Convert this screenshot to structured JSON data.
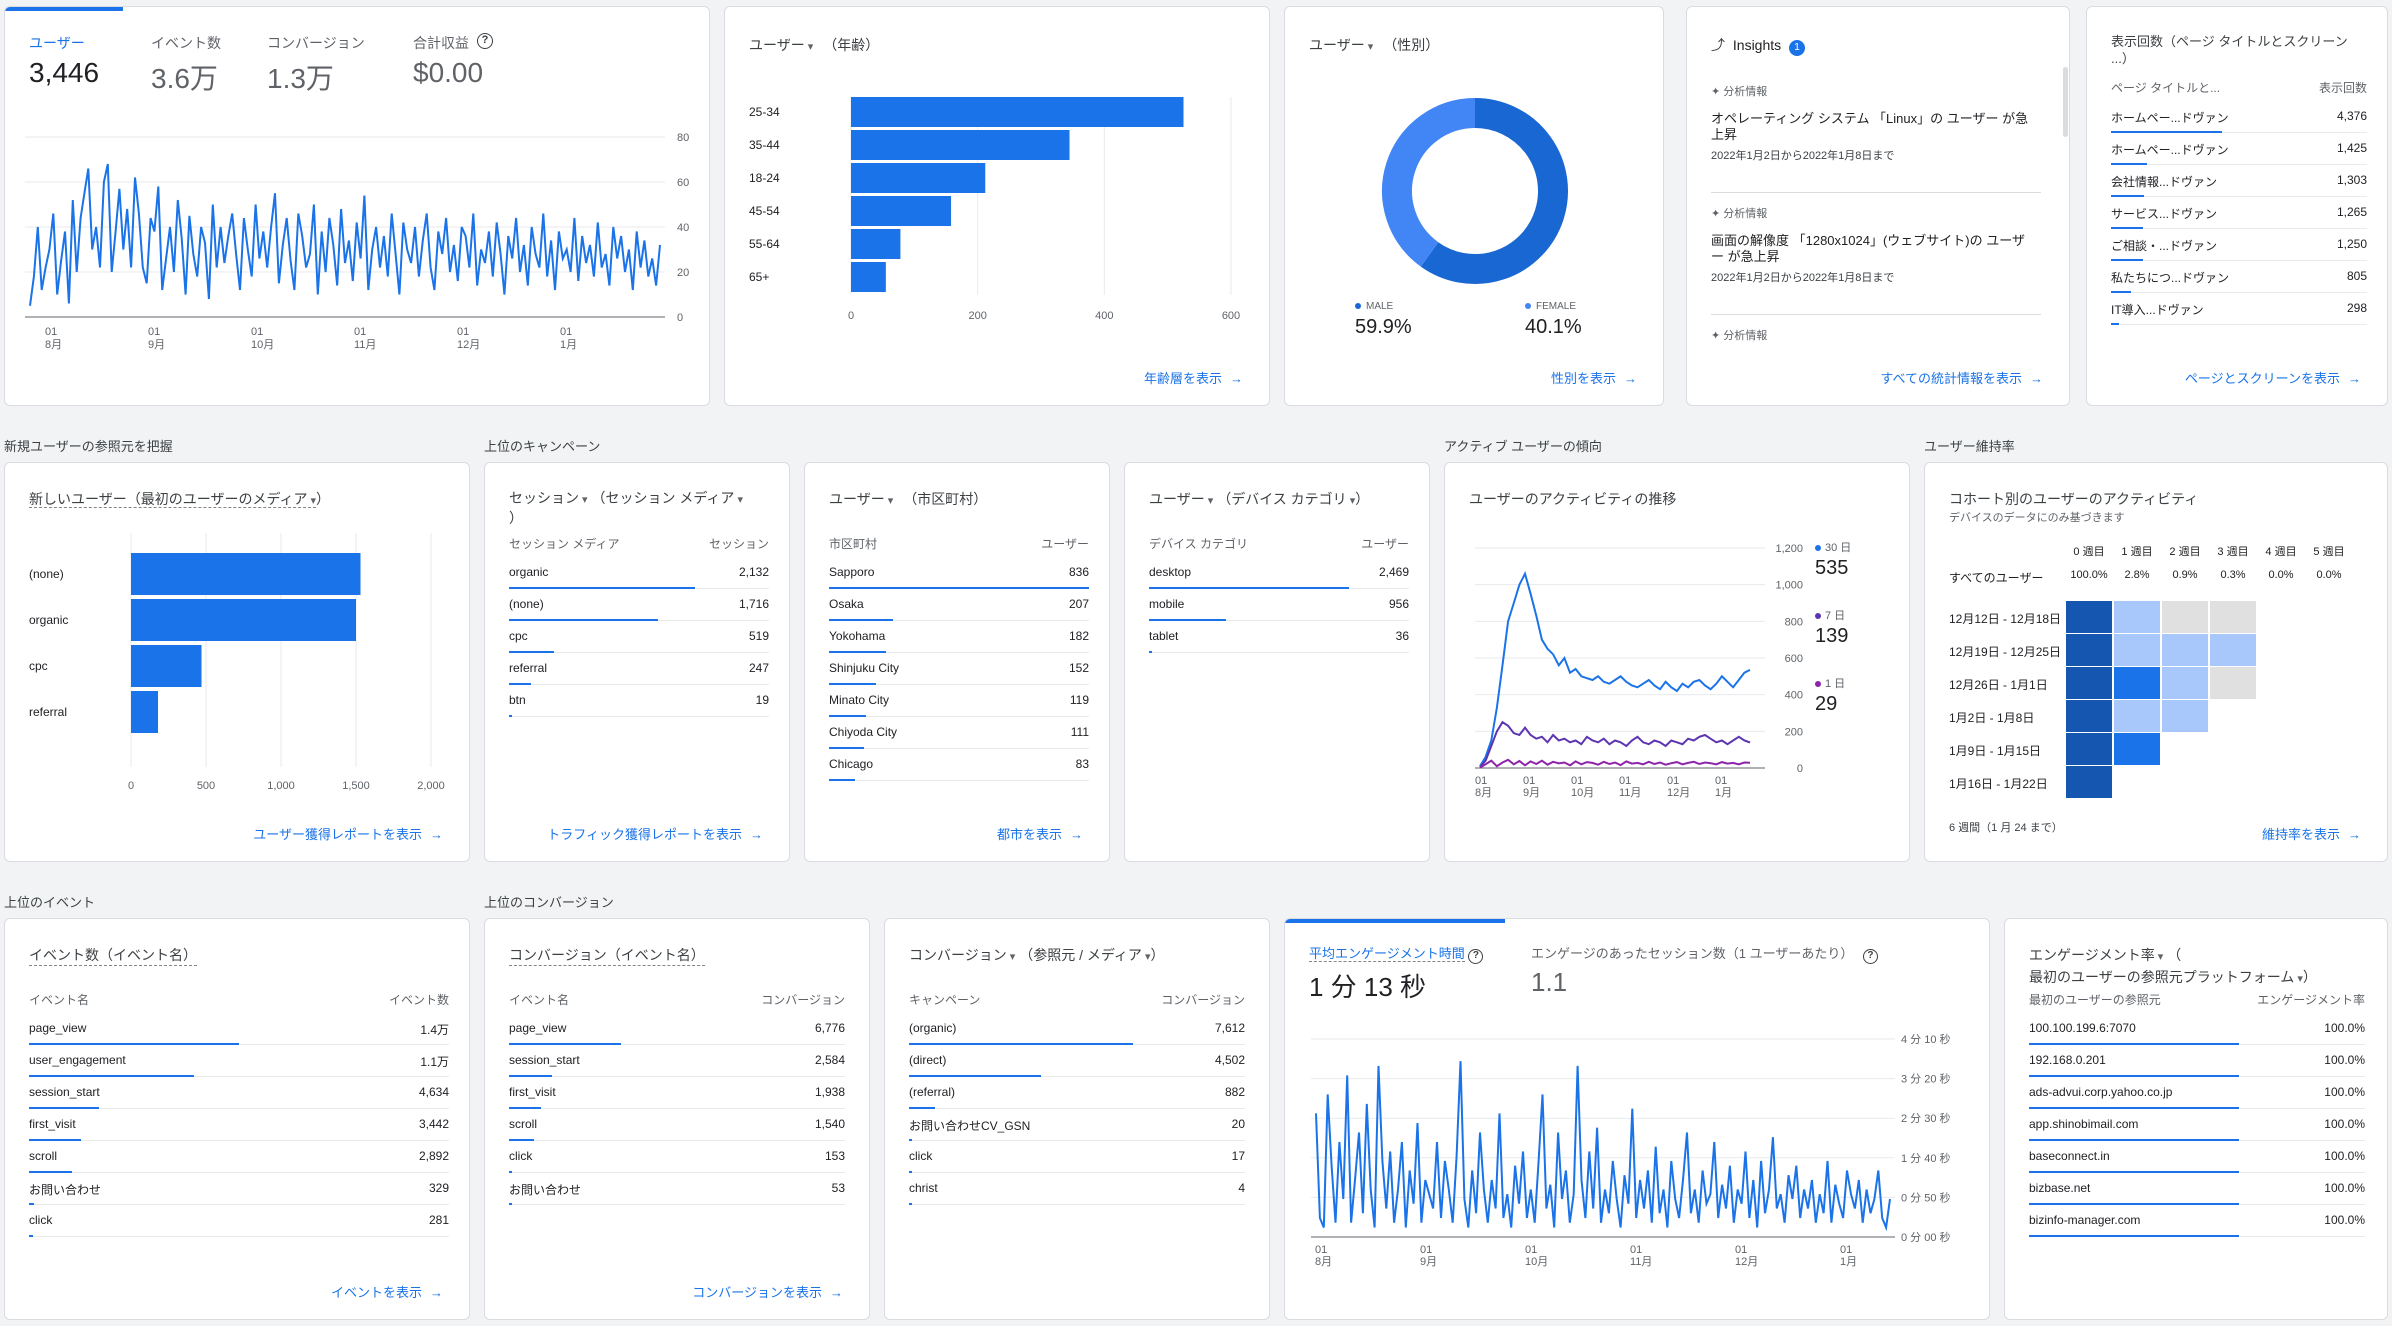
{
  "overview": {
    "metrics": [
      {
        "label": "ユーザー",
        "value": "3,446"
      },
      {
        "label": "イベント数",
        "value": "3.6万"
      },
      {
        "label": "コンバージョン",
        "value": "1.3万"
      },
      {
        "label": "合計収益",
        "value": "$0.00"
      }
    ],
    "y_ticks": [
      "80",
      "60",
      "40",
      "20",
      "0"
    ],
    "x_ticks": [
      [
        "01",
        "8月"
      ],
      [
        "01",
        "9月"
      ],
      [
        "01",
        "10月"
      ],
      [
        "01",
        "11月"
      ],
      [
        "01",
        "12月"
      ],
      [
        "01",
        "1月"
      ]
    ]
  },
  "age": {
    "title": "ユーザー",
    "dim": "（年齢）",
    "link": "年齢層を表示",
    "x_ticks": [
      "0",
      "200",
      "400",
      "600"
    ]
  },
  "gender": {
    "title": "ユーザー",
    "dim": "（性別）",
    "male_label": "MALE",
    "male_value": "59.9%",
    "female_label": "FEMALE",
    "female_value": "40.1%",
    "link": "性別を表示",
    "male_color": "#1967d2",
    "female_color": "#4285f4"
  },
  "insights": {
    "title": "Insights",
    "badge": "1",
    "items": [
      {
        "tag": "分析情報",
        "text": "オペレーティング システム 「Linux」の ユーザー が急上昇",
        "date": "2022年1月2日から2022年1月8日まで"
      },
      {
        "tag": "分析情報",
        "text": "画面の解像度 「1280x1024」(ウェブサイト)の ユーザー が急上昇",
        "date": "2022年1月2日から2022年1月8日まで"
      },
      {
        "tag": "分析情報"
      }
    ],
    "link": "すべての統計情報を表示"
  },
  "pages": {
    "title": "表示回数（ページ タイトルとスクリーン ...）",
    "col1": "ページ タイトルと...",
    "col2": "表示回数",
    "rows": [
      {
        "k": "ホームペー...ドヴァン",
        "v": "4,376"
      },
      {
        "k": "ホームペー...ドヴァン",
        "v": "1,425"
      },
      {
        "k": "会社情報...ドヴァン",
        "v": "1,303"
      },
      {
        "k": "サービス...ドヴァン",
        "v": "1,265"
      },
      {
        "k": "ご相談・...ドヴァン",
        "v": "1,250"
      },
      {
        "k": "私たちにつ...ドヴァン",
        "v": "805"
      },
      {
        "k": "IT導入...ドヴァン",
        "v": "298"
      }
    ],
    "link": "ページとスクリーンを表示"
  },
  "sections": {
    "new_users": "新規ユーザーの参照元を把握",
    "campaigns": "上位のキャンペーン",
    "active": "アクティブ ユーザーの傾向",
    "retention": "ユーザー維持率",
    "events": "上位のイベント",
    "conversions": "上位のコンバージョン"
  },
  "new_users": {
    "title": "新しいユーザー（最初のユーザーのメディア",
    "close": "）",
    "link": "ユーザー獲得レポートを表示",
    "x_ticks": [
      "0",
      "500",
      "1,000",
      "1,500",
      "2,000"
    ]
  },
  "sessions": {
    "title": "セッション",
    "dim": "（セッション メディア",
    "close": "）",
    "col1": "セッション メディア",
    "col2": "セッション",
    "rows": [
      {
        "k": "organic",
        "v": "2,132"
      },
      {
        "k": "(none)",
        "v": "1,716"
      },
      {
        "k": "cpc",
        "v": "519"
      },
      {
        "k": "referral",
        "v": "247"
      },
      {
        "k": "btn",
        "v": "19"
      }
    ],
    "link": "トラフィック獲得レポートを表示"
  },
  "cities": {
    "title": "ユーザー",
    "dim": "（市区町村）",
    "col1": "市区町村",
    "col2": "ユーザー",
    "rows": [
      {
        "k": "Sapporo",
        "v": "836"
      },
      {
        "k": "Osaka",
        "v": "207"
      },
      {
        "k": "Yokohama",
        "v": "182"
      },
      {
        "k": "Shinjuku City",
        "v": "152"
      },
      {
        "k": "Minato City",
        "v": "119"
      },
      {
        "k": "Chiyoda City",
        "v": "111"
      },
      {
        "k": "Chicago",
        "v": "83"
      }
    ],
    "link": "都市を表示"
  },
  "devices": {
    "title": "ユーザー",
    "dim": "（デバイス カテゴリ",
    "close": "）",
    "col1": "デバイス カテゴリ",
    "col2": "ユーザー",
    "rows": [
      {
        "k": "desktop",
        "v": "2,469"
      },
      {
        "k": "mobile",
        "v": "956"
      },
      {
        "k": "tablet",
        "v": "36"
      }
    ]
  },
  "activity": {
    "title": "ユーザーのアクティビティの推移",
    "y_ticks": [
      "1,200",
      "1,000",
      "800",
      "600",
      "400",
      "200",
      "0"
    ],
    "x_ticks": [
      [
        "01",
        "8月"
      ],
      [
        "01",
        "9月"
      ],
      [
        "01",
        "10月"
      ],
      [
        "01",
        "11月"
      ],
      [
        "01",
        "12月"
      ],
      [
        "01",
        "1月"
      ]
    ],
    "legend": [
      {
        "label": "30 日",
        "value": "535",
        "color": "#1a73e8"
      },
      {
        "label": "7 日",
        "value": "139",
        "color": "#5e35b1"
      },
      {
        "label": "1 日",
        "value": "29",
        "color": "#8e24aa"
      }
    ]
  },
  "cohort": {
    "title": "コホート別のユーザーのアクティビティ",
    "subtitle": "デバイスのデータにのみ基づきます",
    "weeks": [
      "0 週目",
      "1 週目",
      "2 週目",
      "3 週目",
      "4 週目",
      "5 週目"
    ],
    "all_label": "すべてのユーザー",
    "all_values": [
      "100.0%",
      "2.8%",
      "0.9%",
      "0.3%",
      "0.0%",
      "0.0%"
    ],
    "rows": [
      "12月12日 - 12月18日",
      "12月19日 - 12月25日",
      "12月26日 - 1月1日",
      "1月2日 - 1月8日",
      "1月9日 - 1月15日",
      "1月16日 - 1月22日"
    ],
    "footer": "6 週間（1 月 24 まで）",
    "link": "維持率を表示"
  },
  "events": {
    "title": "イベント数（イベント名）",
    "col1": "イベント名",
    "col2": "イベント数",
    "rows": [
      {
        "k": "page_view",
        "v": "1.4万"
      },
      {
        "k": "user_engagement",
        "v": "1.1万"
      },
      {
        "k": "session_start",
        "v": "4,634"
      },
      {
        "k": "first_visit",
        "v": "3,442"
      },
      {
        "k": "scroll",
        "v": "2,892"
      },
      {
        "k": "お問い合わせ",
        "v": "329"
      },
      {
        "k": "click",
        "v": "281"
      }
    ],
    "link": "イベントを表示"
  },
  "conv_events": {
    "title": "コンバージョン（イベント名）",
    "col1": "イベント名",
    "col2": "コンバージョン",
    "rows": [
      {
        "k": "page_view",
        "v": "6,776"
      },
      {
        "k": "session_start",
        "v": "2,584"
      },
      {
        "k": "first_visit",
        "v": "1,938"
      },
      {
        "k": "scroll",
        "v": "1,540"
      },
      {
        "k": "click",
        "v": "153"
      },
      {
        "k": "お問い合わせ",
        "v": "53"
      }
    ],
    "link": "コンバージョンを表示"
  },
  "conv_source": {
    "title": "コンバージョン",
    "dim": "（参照元 / メディア",
    "close": "）",
    "col1": "キャンペーン",
    "col2": "コンバージョン",
    "rows": [
      {
        "k": "(organic)",
        "v": "7,612"
      },
      {
        "k": "(direct)",
        "v": "4,502"
      },
      {
        "k": "(referral)",
        "v": "882"
      },
      {
        "k": "お問い合わせCV_GSN",
        "v": "20"
      },
      {
        "k": "click",
        "v": "17"
      },
      {
        "k": "christ",
        "v": "4"
      }
    ]
  },
  "engagement": {
    "m1_label": "平均エンゲージメント時間",
    "m1_value": "1 分 13 秒",
    "m2_label": "エンゲージのあったセッション数（1 ユーザーあたり）",
    "m2_value": "1.1",
    "y_ticks": [
      "4 分 10 秒",
      "3 分 20 秒",
      "2 分 30 秒",
      "1 分 40 秒",
      "0 分 50 秒",
      "0 分 00 秒"
    ],
    "x_ticks": [
      [
        "01",
        "8月"
      ],
      [
        "01",
        "9月"
      ],
      [
        "01",
        "10月"
      ],
      [
        "01",
        "11月"
      ],
      [
        "01",
        "12月"
      ],
      [
        "01",
        "1月"
      ]
    ]
  },
  "eng_rate": {
    "title": "エンゲージメント率",
    "dim": "（",
    "title2": "最初のユーザーの参照元プラットフォーム",
    "close": "）",
    "col1": "最初のユーザーの参照元",
    "col2": "エンゲージメント率",
    "rows": [
      {
        "k": "100.100.199.6:7070",
        "v": "100.0%"
      },
      {
        "k": "192.168.0.201",
        "v": "100.0%"
      },
      {
        "k": "ads-advui.corp.yahoo.co.jp",
        "v": "100.0%"
      },
      {
        "k": "app.shinobimail.com",
        "v": "100.0%"
      },
      {
        "k": "baseconnect.in",
        "v": "100.0%"
      },
      {
        "k": "bizbase.net",
        "v": "100.0%"
      },
      {
        "k": "bizinfo-manager.com",
        "v": "100.0%"
      }
    ]
  },
  "chart_data": [
    {
      "type": "line",
      "y_ticks_printed": [
        "0",
        "20",
        "40",
        "60",
        "80"
      ],
      "ylim": [
        0,
        80
      ],
      "x_labels": [
        "8月",
        "9月",
        "10月",
        "11月",
        "12月",
        "1月"
      ],
      "values": [
        5,
        18,
        40,
        12,
        22,
        30,
        46,
        10,
        25,
        38,
        6,
        52,
        20,
        44,
        55,
        66,
        30,
        40,
        22,
        60,
        68,
        20,
        38,
        57,
        30,
        48,
        22,
        62,
        46,
        22,
        15,
        44,
        38,
        58,
        12,
        26,
        40,
        20,
        52,
        35,
        10,
        45,
        28,
        18,
        40,
        33,
        8,
        50,
        22,
        40,
        24,
        36,
        46,
        28,
        12,
        44,
        30,
        18,
        50,
        26,
        38,
        22,
        40,
        55,
        15,
        32,
        44,
        25,
        12,
        46,
        36,
        22,
        28,
        50,
        10,
        38,
        20,
        44,
        32,
        14,
        48,
        24,
        34,
        16,
        42,
        26,
        54,
        12,
        30,
        40,
        22,
        36,
        18,
        46,
        28,
        10,
        42,
        30,
        24,
        40,
        18,
        34,
        46,
        22,
        12,
        38,
        28,
        44,
        20,
        32,
        16,
        40,
        36,
        22,
        46,
        14,
        30,
        24,
        38,
        18,
        42,
        28,
        10,
        36,
        26,
        44,
        20,
        32,
        14,
        40,
        28,
        22,
        46,
        18,
        34,
        12,
        38,
        26,
        30,
        20,
        44,
        16,
        36,
        24,
        32,
        18,
        42,
        22,
        28,
        14,
        40,
        26,
        36,
        20,
        30,
        12,
        38,
        22,
        34,
        18,
        26,
        14,
        32
      ]
    },
    {
      "type": "bar",
      "orientation": "horizontal",
      "categories": [
        "25-34",
        "35-44",
        "18-24",
        "45-54",
        "55-64",
        "65+"
      ],
      "values": [
        525,
        345,
        212,
        158,
        78,
        55
      ],
      "xlim": [
        0,
        600
      ]
    },
    {
      "type": "pie",
      "categories": [
        "MALE",
        "FEMALE"
      ],
      "values": [
        59.9,
        40.1
      ]
    },
    {
      "type": "bar",
      "orientation": "horizontal",
      "categories": [
        "(none)",
        "organic",
        "cpc",
        "referral"
      ],
      "values": [
        1530,
        1500,
        470,
        180
      ],
      "xlim": [
        0,
        2000
      ]
    },
    {
      "type": "line",
      "ylim": [
        0,
        1200
      ],
      "x_labels": [
        "8月",
        "9月",
        "10月",
        "11月",
        "12月",
        "1月"
      ],
      "series": [
        {
          "name": "30 日",
          "values": [
            10,
            60,
            150,
            330,
            560,
            800,
            900,
            1000,
            1060,
            950,
            830,
            700,
            650,
            620,
            560,
            600,
            520,
            540,
            500,
            490,
            480,
            500,
            470,
            460,
            480,
            500,
            470,
            450,
            440,
            460,
            480,
            450,
            430,
            470,
            440,
            420,
            460,
            440,
            470,
            480,
            450,
            430,
            460,
            500,
            470,
            440,
            480,
            520,
            535
          ]
        },
        {
          "name": "7 日",
          "values": [
            5,
            40,
            120,
            200,
            250,
            230,
            190,
            180,
            220,
            180,
            160,
            170,
            140,
            180,
            150,
            160,
            140,
            150,
            130,
            170,
            150,
            140,
            160,
            130,
            150,
            140,
            120,
            150,
            170,
            140,
            130,
            150,
            140,
            120,
            150,
            140,
            130,
            160,
            150,
            170,
            180,
            160,
            140,
            150,
            130,
            150,
            170,
            150,
            139
          ]
        },
        {
          "name": "1 日",
          "values": [
            2,
            20,
            40,
            10,
            30,
            45,
            20,
            38,
            15,
            36,
            22,
            40,
            18,
            34,
            25,
            30,
            15,
            36,
            20,
            32,
            28,
            18,
            34,
            22,
            30,
            16,
            36,
            24,
            28,
            20,
            34,
            22,
            30,
            18,
            26,
            32,
            20,
            28,
            34,
            22,
            30,
            26,
            20,
            32,
            24,
            28,
            20,
            30,
            29
          ]
        }
      ]
    },
    {
      "type": "heatmap",
      "x": [
        "0 週目",
        "1 週目",
        "2 週目",
        "3 週目",
        "4 週目",
        "5 週目"
      ],
      "y": [
        "12月12日 - 12月18日",
        "12月19日 - 12月25日",
        "12月26日 - 1月1日",
        "1月2日 - 1月8日",
        "1月9日 - 1月15日",
        "1月16日 - 1月22日"
      ]
    },
    {
      "type": "line",
      "y_ticks_printed": [
        "0 分 00 秒",
        "0 分 50 秒",
        "1 分 40 秒",
        "2 分 30 秒",
        "3 分 20 秒",
        "4 分 10 秒"
      ],
      "x_labels": [
        "8月",
        "9月",
        "10月",
        "11月",
        "12月",
        "1月"
      ],
      "values": [
        2.6,
        0.4,
        0.2,
        3.0,
        1.5,
        0.3,
        2.0,
        0.8,
        3.4,
        0.3,
        1.2,
        2.2,
        0.5,
        2.8,
        1.0,
        0.2,
        3.6,
        1.6,
        0.6,
        1.8,
        0.3,
        1.0,
        2.0,
        0.2,
        1.4,
        0.7,
        2.4,
        0.3,
        1.2,
        0.9,
        0.6,
        2.0,
        0.4,
        1.6,
        1.0,
        0.3,
        1.7,
        3.7,
        0.8,
        0.2,
        1.4,
        0.5,
        2.2,
        1.0,
        0.3,
        1.2,
        0.6,
        2.6,
        0.4,
        0.9,
        0.2,
        1.5,
        0.7,
        1.8,
        0.4,
        1.0,
        0.3,
        1.6,
        3.0,
        0.6,
        1.1,
        0.2,
        2.2,
        0.8,
        1.4,
        0.3,
        0.9,
        3.6,
        1.2,
        0.4,
        1.8,
        0.6,
        2.3,
        0.3,
        1.0,
        0.5,
        1.6,
        0.8,
        0.2,
        1.3,
        0.7,
        2.7,
        0.4,
        1.2,
        0.6,
        1.4,
        0.3,
        1.9,
        0.5,
        1.0,
        0.2,
        1.6,
        0.8,
        0.4,
        1.2,
        2.2,
        0.5,
        1.0,
        0.3,
        1.4,
        0.7,
        0.9,
        2.0,
        0.4,
        1.1,
        0.6,
        1.5,
        0.3,
        1.0,
        0.7,
        1.8,
        0.4,
        1.2,
        0.2,
        1.6,
        0.5,
        1.0,
        2.1,
        0.6,
        0.9,
        0.3,
        1.3,
        0.8,
        1.5,
        0.4,
        1.0,
        0.6,
        1.2,
        0.3,
        0.9,
        0.5,
        1.6,
        0.3,
        1.1,
        0.7,
        0.4,
        1.4,
        0.9,
        0.6,
        1.2,
        0.3,
        1.0,
        0.5,
        0.8,
        1.4,
        0.4,
        0.2,
        0.8
      ]
    }
  ]
}
